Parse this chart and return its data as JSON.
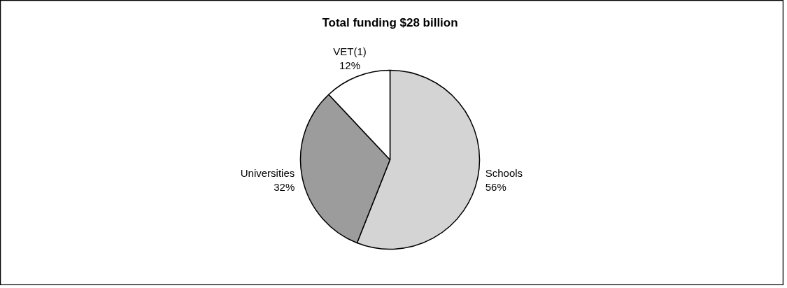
{
  "chart_data": {
    "type": "pie",
    "title": "Total funding $28 billion",
    "categories": [
      "Schools",
      "Universities",
      "VET(1)"
    ],
    "values": [
      56,
      32,
      12
    ],
    "value_labels": [
      "56%",
      "32%",
      "12%"
    ],
    "colors": [
      "#d4d4d4",
      "#9c9c9c",
      "#ffffff"
    ]
  }
}
